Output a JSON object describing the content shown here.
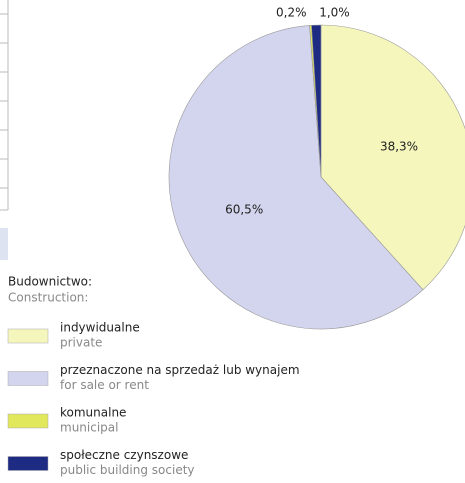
{
  "chart_data": {
    "type": "pie",
    "legend_title": "Budownictwo:",
    "legend_subtitle": "Construction:",
    "categories": [
      "indywidualne",
      "przeznaczone na sprzedaż lub wynajem",
      "komunalne",
      "społeczne czynszowe"
    ],
    "categories_en": [
      "private",
      "for sale or rent",
      "municipal",
      "public building society"
    ],
    "values": [
      38.3,
      60.5,
      0.2,
      1.0
    ],
    "value_labels": [
      "38,3%",
      "60,5%",
      "0,2%",
      "1,0%"
    ],
    "colors": [
      "#f5f6bc",
      "#d3d5ee",
      "#e2e85c",
      "#1e2b82"
    ]
  }
}
